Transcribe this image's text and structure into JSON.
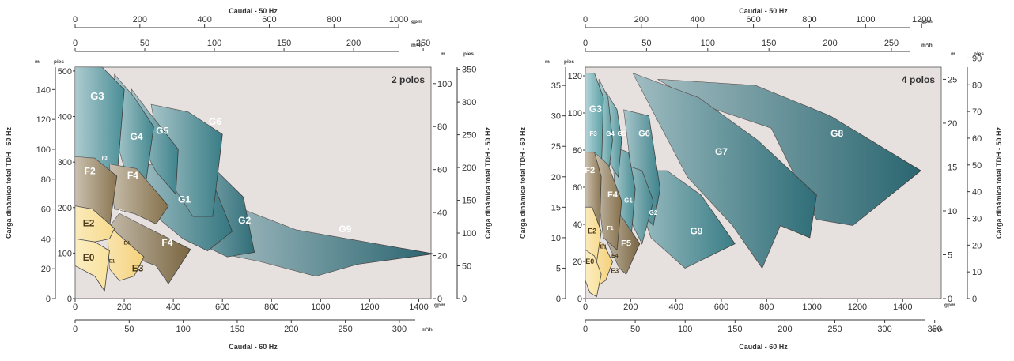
{
  "chart_data": [
    {
      "type": "area",
      "title": "2 polos",
      "axes": {
        "top": {
          "label": "Caudal - 50 Hz",
          "units": [
            "gpm",
            "m³/h"
          ],
          "gpm_ticks": [
            "0",
            "200",
            "400",
            "600",
            "800",
            "1000"
          ],
          "m3h_ticks": [
            "0",
            "50",
            "100",
            "150",
            "200",
            "250"
          ]
        },
        "bottom": {
          "label": "Caudal - 60 Hz",
          "units": [
            "gpm",
            "m³/h"
          ],
          "gpm_ticks": [
            "0",
            "200",
            "400",
            "600",
            "800",
            "1000",
            "1200",
            "1400"
          ],
          "m3h_ticks": [
            "0",
            "50",
            "100",
            "150",
            "200",
            "250",
            "300"
          ]
        },
        "left": {
          "label": "Carga dinámica total TDH - 60 Hz",
          "units": [
            "m",
            "pies"
          ],
          "m_ticks": [
            "0",
            "20",
            "40",
            "60",
            "80",
            "100",
            "120",
            "140"
          ],
          "ft_ticks": [
            "0",
            "100",
            "200",
            "300",
            "400",
            "500"
          ]
        },
        "right": {
          "label": "Carga dinámica total TDH - 50 Hz",
          "units": [
            "m",
            "pies"
          ],
          "m_ticks": [
            "0",
            "20",
            "40",
            "60",
            "80",
            "100"
          ],
          "ft_ticks": [
            "0",
            "50",
            "100",
            "150",
            "200",
            "250",
            "300",
            "350"
          ]
        }
      },
      "x_range_gpm": [
        0,
        1450
      ],
      "y_range_m": [
        0,
        155
      ],
      "regions": [
        {
          "label": "G9",
          "color": "#2b6570",
          "points": [
            [
              600,
              65
            ],
            [
              900,
              46
            ],
            [
              1460,
              30
            ],
            [
              1150,
              23
            ],
            [
              980,
              15
            ],
            [
              750,
              25
            ],
            [
              600,
              30
            ]
          ]
        },
        {
          "label": "G2",
          "color": "#2f6e78",
          "points": [
            [
              420,
              90
            ],
            [
              555,
              89
            ],
            [
              685,
              68
            ],
            [
              730,
              31
            ],
            [
              620,
              28
            ],
            [
              530,
              35
            ],
            [
              420,
              55
            ]
          ]
        },
        {
          "label": "G1",
          "color": "#347680",
          "points": [
            [
              240,
              90
            ],
            [
              420,
              89
            ],
            [
              560,
              78
            ],
            [
              640,
              45
            ],
            [
              540,
              32
            ],
            [
              440,
              40
            ],
            [
              330,
              55
            ]
          ]
        },
        {
          "label": "G6",
          "color": "#3a7d86",
          "points": [
            [
              310,
              130
            ],
            [
              460,
              125
            ],
            [
              600,
              110
            ],
            [
              560,
              55
            ],
            [
              480,
              55
            ],
            [
              360,
              85
            ]
          ]
        },
        {
          "label": "G5",
          "color": "#3f838c",
          "points": [
            [
              230,
              140
            ],
            [
              300,
              125
            ],
            [
              420,
              100
            ],
            [
              410,
              70
            ],
            [
              330,
              85
            ],
            [
              250,
              110
            ]
          ]
        },
        {
          "label": "G4",
          "color": "#448890",
          "points": [
            [
              160,
              150
            ],
            [
              240,
              135
            ],
            [
              320,
              115
            ],
            [
              290,
              80
            ],
            [
              210,
              82
            ],
            [
              170,
              105
            ]
          ]
        },
        {
          "label": "G3",
          "color": "#4a8e96",
          "points": [
            [
              0,
              155
            ],
            [
              110,
              155
            ],
            [
              200,
              140
            ],
            [
              170,
              80
            ],
            [
              80,
              85
            ],
            [
              0,
              95
            ]
          ]
        },
        {
          "label": "F4",
          "color": "#7a6540",
          "points": [
            [
              180,
              57
            ],
            [
              300,
              47
            ],
            [
              470,
              33
            ],
            [
              380,
              10
            ],
            [
              330,
              22
            ],
            [
              200,
              30
            ],
            [
              140,
              48
            ]
          ]
        },
        {
          "label": "F4",
          "color": "#85704a",
          "points": [
            [
              140,
              90
            ],
            [
              250,
              87
            ],
            [
              380,
              62
            ],
            [
              330,
              50
            ],
            [
              240,
              57
            ],
            [
              160,
              60
            ]
          ]
        },
        {
          "label": "F2",
          "color": "#8a7550",
          "points": [
            [
              0,
              95
            ],
            [
              80,
              94
            ],
            [
              170,
              82
            ],
            [
              140,
              48
            ],
            [
              80,
              52
            ],
            [
              0,
              55
            ]
          ]
        },
        {
          "label": "E3",
          "color": "#f5d27a",
          "points": [
            [
              130,
              50
            ],
            [
              210,
              38
            ],
            [
              280,
              28
            ],
            [
              240,
              15
            ],
            [
              180,
              12
            ],
            [
              140,
              20
            ]
          ]
        },
        {
          "label": "E2",
          "color": "#f7db8c",
          "points": [
            [
              0,
              62
            ],
            [
              70,
              60
            ],
            [
              160,
              47
            ],
            [
              140,
              40
            ],
            [
              80,
              38
            ],
            [
              0,
              40
            ]
          ]
        },
        {
          "label": "E0",
          "color": "#f9e29c",
          "points": [
            [
              0,
              40
            ],
            [
              80,
              38
            ],
            [
              140,
              32
            ],
            [
              120,
              5
            ],
            [
              80,
              15
            ],
            [
              0,
              22
            ]
          ]
        }
      ],
      "region_labels": [
        "G3",
        "G4",
        "G5",
        "G6",
        "G1",
        "G2",
        "G9",
        "F2",
        "F4",
        "F4",
        "E2",
        "E0",
        "E3",
        "E1",
        "E4",
        "F1",
        "F3"
      ]
    },
    {
      "type": "area",
      "title": "4 polos",
      "axes": {
        "top": {
          "label": "Caudal - 50 Hz",
          "units": [
            "gpm",
            "m³/h"
          ],
          "gpm_ticks": [
            "0",
            "200",
            "400",
            "600",
            "800",
            "1000",
            "1200"
          ],
          "m3h_ticks": [
            "0",
            "50",
            "100",
            "150",
            "200",
            "250"
          ]
        },
        "bottom": {
          "label": "Caudal - 60 Hz",
          "units": [
            "gpm",
            "m³/h"
          ],
          "gpm_ticks": [
            "0",
            "200",
            "400",
            "600",
            "800",
            "1000",
            "1200",
            "1400"
          ],
          "m3h_ticks": [
            "0",
            "50",
            "100",
            "150",
            "200",
            "250",
            "300",
            "350"
          ]
        },
        "left": {
          "label": "Carga dinámica total TDH - 60 Hz",
          "units": [
            "m",
            "pies"
          ],
          "m_ticks": [
            "0",
            "5",
            "10",
            "15",
            "20",
            "25",
            "30",
            "35"
          ],
          "ft_ticks": [
            "0",
            "20",
            "40",
            "60",
            "80",
            "100",
            "120"
          ]
        },
        "right": {
          "label": "Carga dinámica total TDH - 50 Hz",
          "units": [
            "m",
            "pies"
          ],
          "m_ticks": [
            "0",
            "5",
            "10",
            "15",
            "20",
            "25"
          ],
          "ft_ticks": [
            "0",
            "10",
            "20",
            "30",
            "40",
            "50",
            "60",
            "70",
            "80",
            "90"
          ]
        }
      },
      "x_range_gpm": [
        0,
        1570
      ],
      "y_range_m": [
        0,
        38
      ],
      "regions": [
        {
          "label": "G8",
          "color": "#2a6670",
          "points": [
            [
              320,
              36
            ],
            [
              750,
              35
            ],
            [
              1080,
              30
            ],
            [
              1480,
              21
            ],
            [
              1180,
              12
            ],
            [
              1020,
              13
            ],
            [
              820,
              28
            ],
            [
              500,
              32
            ]
          ]
        },
        {
          "label": "G7",
          "color": "#2f6e78",
          "points": [
            [
              210,
              37
            ],
            [
              500,
              33
            ],
            [
              760,
              26
            ],
            [
              1020,
              17
            ],
            [
              990,
              10
            ],
            [
              860,
              12
            ],
            [
              780,
              5
            ],
            [
              650,
              12
            ],
            [
              450,
              20
            ]
          ]
        },
        {
          "label": "G9",
          "color": "#3a7d86",
          "points": [
            [
              190,
              21
            ],
            [
              360,
              21
            ],
            [
              510,
              17
            ],
            [
              660,
              9
            ],
            [
              550,
              7
            ],
            [
              440,
              5
            ],
            [
              290,
              10
            ]
          ]
        },
        {
          "label": "G6",
          "color": "#3f838c",
          "points": [
            [
              170,
              31
            ],
            [
              280,
              30
            ],
            [
              330,
              18
            ],
            [
              300,
              12
            ],
            [
              250,
              14
            ],
            [
              200,
              22
            ]
          ]
        },
        {
          "label": "G2",
          "color": "#448890",
          "points": [
            [
              170,
              22
            ],
            [
              250,
              21
            ],
            [
              300,
              16
            ],
            [
              250,
              9
            ],
            [
              210,
              12
            ]
          ]
        },
        {
          "label": "G1",
          "color": "#4a8e96",
          "points": [
            [
              120,
              25
            ],
            [
              190,
              24
            ],
            [
              220,
              18
            ],
            [
              200,
              9
            ],
            [
              150,
              12
            ],
            [
              130,
              18
            ]
          ]
        },
        {
          "label": "G5",
          "color": "#4f949b",
          "points": [
            [
              90,
              34
            ],
            [
              140,
              31
            ],
            [
              160,
              26
            ],
            [
              145,
              20
            ],
            [
              110,
              22
            ]
          ]
        },
        {
          "label": "G4",
          "color": "#559aa0",
          "points": [
            [
              60,
              36
            ],
            [
              100,
              33
            ],
            [
              120,
              26
            ],
            [
              100,
              20
            ],
            [
              70,
              22
            ]
          ]
        },
        {
          "label": "G3",
          "color": "#5aa0a6",
          "points": [
            [
              0,
              37
            ],
            [
              40,
              37
            ],
            [
              80,
              33
            ],
            [
              70,
              20
            ],
            [
              30,
              18
            ],
            [
              0,
              22
            ]
          ]
        },
        {
          "label": "F5",
          "color": "#7a6540",
          "points": [
            [
              80,
              14
            ],
            [
              150,
              14
            ],
            [
              240,
              9
            ],
            [
              180,
              4
            ],
            [
              150,
              5
            ],
            [
              100,
              9
            ]
          ]
        },
        {
          "label": "F4",
          "color": "#85704a",
          "points": [
            [
              40,
              24
            ],
            [
              100,
              22
            ],
            [
              160,
              16
            ],
            [
              140,
              8
            ],
            [
              80,
              10
            ],
            [
              60,
              16
            ]
          ]
        },
        {
          "label": "F2",
          "color": "#8a7550",
          "points": [
            [
              0,
              24
            ],
            [
              40,
              24
            ],
            [
              70,
              20
            ],
            [
              60,
              8
            ],
            [
              30,
              10
            ],
            [
              0,
              14
            ]
          ]
        },
        {
          "label": "E3",
          "color": "#f5d27a",
          "points": [
            [
              30,
              10
            ],
            [
              80,
              9
            ],
            [
              120,
              6
            ],
            [
              90,
              3
            ],
            [
              50,
              2
            ]
          ]
        },
        {
          "label": "E2",
          "color": "#f7db8c",
          "points": [
            [
              0,
              15
            ],
            [
              30,
              15
            ],
            [
              70,
              11
            ],
            [
              50,
              6
            ],
            [
              20,
              6
            ],
            [
              0,
              8
            ]
          ]
        },
        {
          "label": "E0",
          "color": "#f9e29c",
          "points": [
            [
              0,
              8
            ],
            [
              40,
              7
            ],
            [
              70,
              4
            ],
            [
              50,
              0.3
            ],
            [
              20,
              1
            ],
            [
              0,
              3
            ]
          ]
        }
      ],
      "region_labels": [
        "G3",
        "G4",
        "G5",
        "G6",
        "G1",
        "G2",
        "G9",
        "G7",
        "G8",
        "F3",
        "F2",
        "F4",
        "F1",
        "F5",
        "E2",
        "E1",
        "E0",
        "E3",
        "E4"
      ]
    }
  ]
}
